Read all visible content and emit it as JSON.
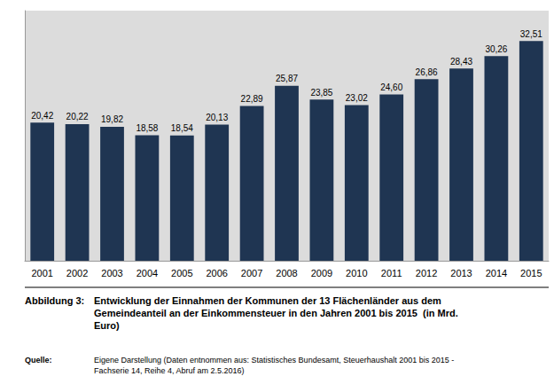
{
  "chart_data": {
    "type": "bar",
    "categories": [
      "2001",
      "2002",
      "2003",
      "2004",
      "2005",
      "2006",
      "2007",
      "2008",
      "2009",
      "2010",
      "2011",
      "2012",
      "2013",
      "2014",
      "2015"
    ],
    "values": [
      20.42,
      20.22,
      19.82,
      18.58,
      18.54,
      20.13,
      22.89,
      25.87,
      23.85,
      23.02,
      24.6,
      26.86,
      28.43,
      30.26,
      32.51
    ],
    "value_labels": [
      "20,42",
      "20,22",
      "19,82",
      "18,58",
      "18,54",
      "20,13",
      "22,89",
      "25,87",
      "23,85",
      "23,02",
      "24,60",
      "26,86",
      "28,43",
      "30,26",
      "32,51"
    ],
    "color": "#1F3552",
    "ylim": [
      0,
      37
    ],
    "tick_labels": "x",
    "grid": false,
    "data_labels": true,
    "annotations": [
      "Abbildung 3:",
      "Entwicklung der Einnahmen der Kommunen der 13 Flächenländer aus dem\nGemeindeanteil an der Einkommensteuer in den Jahren 2001 bis 2015  (in Mrd.\nEuro)",
      "Quelle:",
      "Eigene Darstellung (Daten entnommen aus: Statistisches Bundesamt, Steuerhaushalt 2001 bis 2015 -\nFachserie 14, Reihe 4, Abruf am 2.5.2016)"
    ]
  }
}
